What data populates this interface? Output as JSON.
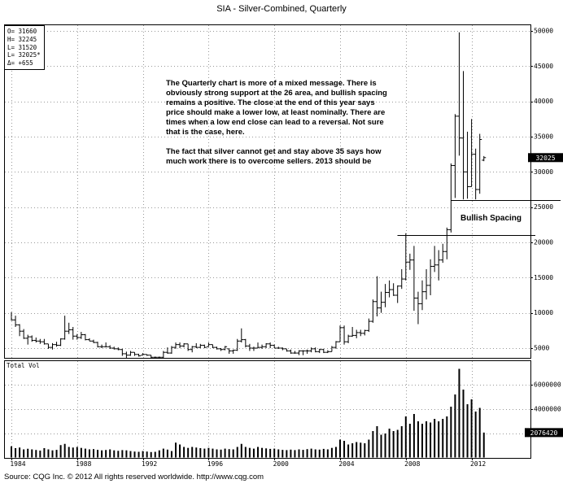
{
  "header": {
    "title": "SIA - Silver-Combined, Quarterly"
  },
  "legend": {
    "lines": [
      "O= 31660",
      "H= 32245",
      "L= 31520",
      "L= 32025*",
      "Δ=  +655"
    ]
  },
  "annotation": {
    "para1": "The Quarterly chart is more of a mixed message.  There is obviously strong support at the 26 area, and bullish spacing\nremains a positive.  The close at the end of this year says price should make a lower low, at least nominally.  There are times when a low end close can lead to a reversal. Not sure that is the case, here.",
    "para2": "The fact that silver cannot get and stay above 35 says how much work there is to overcome sellers.  2013 should be"
  },
  "labels": {
    "bullish_spacing": "Bullish Spacing",
    "total_vol": "Total Vol"
  },
  "badges": {
    "last_price": "32025",
    "last_volume": "2076420"
  },
  "footer": {
    "source": "Source: CQG Inc. © 2012 All rights reserved worldwide. http://www.cqg.com"
  },
  "chart_data": {
    "type": "bar",
    "subtype": "hlc-price-bars-with-volume-panel",
    "title": "SIA - Silver-Combined, Quarterly",
    "frequency": "quarterly",
    "x_start": "1984Q1",
    "x_end": "2012Q4",
    "price_ticks": [
      50000,
      45000,
      40000,
      35000,
      30000,
      25000,
      20000,
      15000,
      10000,
      5000
    ],
    "volume_ticks": [
      6000000,
      4000000,
      2000000
    ],
    "year_ticks": [
      {
        "label": "1984",
        "index": 0
      },
      {
        "label": "1988",
        "index": 16
      },
      {
        "label": "1992",
        "index": 32
      },
      {
        "label": "1996",
        "index": 48
      },
      {
        "label": "2000",
        "index": 64
      },
      {
        "label": "2004",
        "index": 80
      },
      {
        "label": "2008",
        "index": 96
      },
      {
        "label": "2012",
        "index": 112
      }
    ],
    "last_bar": {
      "open": 31660,
      "high": 32245,
      "low": 31520,
      "last": 32025,
      "net_change": 655
    },
    "support_lines": [
      {
        "level": 26000,
        "from_index": 107
      },
      {
        "level": 21000,
        "from_index": 94,
        "label": "Bullish Spacing"
      }
    ],
    "hlc": [
      [
        10100,
        8900,
        9000
      ],
      [
        9600,
        8000,
        8300
      ],
      [
        8400,
        6700,
        7400
      ],
      [
        7700,
        6300,
        6400
      ],
      [
        6900,
        5500,
        6600
      ],
      [
        6800,
        5900,
        6100
      ],
      [
        6500,
        5800,
        6000
      ],
      [
        6300,
        5600,
        5900
      ],
      [
        6300,
        5500,
        5600
      ],
      [
        5600,
        4900,
        5100
      ],
      [
        5700,
        4800,
        5500
      ],
      [
        5900,
        5200,
        5400
      ],
      [
        6400,
        5300,
        6300
      ],
      [
        9600,
        6200,
        7400
      ],
      [
        8600,
        7000,
        7600
      ],
      [
        8000,
        6200,
        6700
      ],
      [
        7000,
        6200,
        6500
      ],
      [
        7300,
        6300,
        6900
      ],
      [
        7000,
        6100,
        6200
      ],
      [
        6400,
        6000,
        6000
      ],
      [
        6200,
        5700,
        5800
      ],
      [
        5900,
        5100,
        5200
      ],
      [
        5500,
        5000,
        5200
      ],
      [
        5800,
        5100,
        5200
      ],
      [
        5400,
        4900,
        5000
      ],
      [
        5200,
        4800,
        4900
      ],
      [
        5100,
        4700,
        4800
      ],
      [
        4900,
        3900,
        4200
      ],
      [
        4500,
        3600,
        4000
      ],
      [
        4600,
        3900,
        4400
      ],
      [
        4400,
        3900,
        4100
      ],
      [
        4200,
        3800,
        3900
      ],
      [
        4300,
        4000,
        4100
      ],
      [
        4100,
        3900,
        4000
      ],
      [
        4000,
        3600,
        3700
      ],
      [
        3800,
        3600,
        3700
      ],
      [
        3800,
        3500,
        3700
      ],
      [
        4600,
        3600,
        4400
      ],
      [
        5100,
        4200,
        4300
      ],
      [
        5300,
        4200,
        5100
      ],
      [
        5800,
        4900,
        5500
      ],
      [
        5800,
        5000,
        5300
      ],
      [
        5700,
        5100,
        5600
      ],
      [
        5600,
        4600,
        4800
      ],
      [
        5300,
        4400,
        5200
      ],
      [
        5700,
        5000,
        5100
      ],
      [
        5600,
        5000,
        5400
      ],
      [
        5500,
        5000,
        5100
      ],
      [
        5800,
        5200,
        5500
      ],
      [
        5500,
        5000,
        5100
      ],
      [
        5200,
        4800,
        4900
      ],
      [
        5000,
        4600,
        4800
      ],
      [
        5300,
        4700,
        5200
      ],
      [
        4900,
        4200,
        4600
      ],
      [
        4800,
        4200,
        4700
      ],
      [
        6300,
        4600,
        6000
      ],
      [
        7800,
        5800,
        6200
      ],
      [
        6300,
        5100,
        5300
      ],
      [
        5600,
        4600,
        5000
      ],
      [
        5200,
        4600,
        5000
      ],
      [
        5800,
        5000,
        5100
      ],
      [
        5500,
        4900,
        5200
      ],
      [
        5700,
        5000,
        5600
      ],
      [
        5800,
        5000,
        5400
      ],
      [
        5500,
        5000,
        5000
      ],
      [
        5200,
        4900,
        5000
      ],
      [
        5100,
        4700,
        4900
      ],
      [
        4900,
        4500,
        4600
      ],
      [
        4800,
        4200,
        4300
      ],
      [
        4600,
        4200,
        4300
      ],
      [
        4700,
        4000,
        4600
      ],
      [
        4700,
        4000,
        4600
      ],
      [
        4800,
        4200,
        4600
      ],
      [
        5100,
        4400,
        4900
      ],
      [
        5100,
        4400,
        4500
      ],
      [
        4900,
        4300,
        4800
      ],
      [
        4900,
        4300,
        4400
      ],
      [
        4700,
        4300,
        4500
      ],
      [
        5300,
        4500,
        5100
      ],
      [
        6000,
        4900,
        5900
      ],
      [
        8200,
        5900,
        7900
      ],
      [
        8200,
        5500,
        5900
      ],
      [
        6900,
        5700,
        6700
      ],
      [
        8000,
        6600,
        6800
      ],
      [
        7600,
        6400,
        7200
      ],
      [
        7600,
        6700,
        7100
      ],
      [
        7600,
        6800,
        7500
      ],
      [
        9200,
        7300,
        8800
      ],
      [
        11900,
        8600,
        11600
      ],
      [
        15200,
        9500,
        10700
      ],
      [
        13000,
        10000,
        11500
      ],
      [
        14100,
        10800,
        12900
      ],
      [
        14600,
        12200,
        13300
      ],
      [
        14200,
        12400,
        12500
      ],
      [
        13900,
        11400,
        13800
      ],
      [
        16200,
        13400,
        14800
      ],
      [
        21300,
        14600,
        17200
      ],
      [
        18400,
        16100,
        17500
      ],
      [
        19500,
        10300,
        12100
      ],
      [
        13000,
        8400,
        11300
      ],
      [
        14600,
        10400,
        13000
      ],
      [
        16200,
        11900,
        13900
      ],
      [
        17600,
        12500,
        16600
      ],
      [
        19500,
        15800,
        16800
      ],
      [
        18900,
        14600,
        17500
      ],
      [
        19800,
        17100,
        18700
      ],
      [
        22100,
        17600,
        21800
      ],
      [
        31200,
        21400,
        30900
      ],
      [
        38200,
        26300,
        37900
      ],
      [
        49800,
        32300,
        34800
      ],
      [
        44300,
        26100,
        30000
      ],
      [
        35700,
        26200,
        27900
      ],
      [
        37500,
        27900,
        32500
      ],
      [
        33300,
        26100,
        27500
      ],
      [
        35400,
        26900,
        34600
      ],
      [
        32245,
        31520,
        32025
      ]
    ],
    "volume": [
      950000,
      800000,
      850000,
      700000,
      750000,
      700000,
      650000,
      600000,
      800000,
      700000,
      620000,
      660000,
      1050000,
      1150000,
      900000,
      850000,
      900000,
      820000,
      760000,
      700000,
      720000,
      660000,
      620000,
      650000,
      700000,
      620000,
      580000,
      640000,
      620000,
      560000,
      520000,
      500000,
      560000,
      520000,
      480000,
      500000,
      620000,
      760000,
      680000,
      560000,
      1250000,
      1100000,
      900000,
      820000,
      900000,
      850000,
      800000,
      760000,
      820000,
      760000,
      700000,
      680000,
      760000,
      720000,
      700000,
      900000,
      1150000,
      900000,
      820000,
      760000,
      900000,
      820000,
      780000,
      740000,
      760000,
      700000,
      660000,
      640000,
      680000,
      640000,
      700000,
      660000,
      720000,
      760000,
      700000,
      680000,
      740000,
      700000,
      820000,
      900000,
      1500000,
      1400000,
      1100000,
      1200000,
      1300000,
      1250000,
      1200000,
      1500000,
      2200000,
      2600000,
      1900000,
      2000000,
      2400000,
      2200000,
      2300000,
      2600000,
      3400000,
      2800000,
      3600000,
      3000000,
      2800000,
      3000000,
      2900000,
      3200000,
      3000000,
      3200000,
      3400000,
      4200000,
      5200000,
      7300000,
      5600000,
      4400000,
      4800000,
      3800000,
      4100000,
      2076420
    ]
  }
}
